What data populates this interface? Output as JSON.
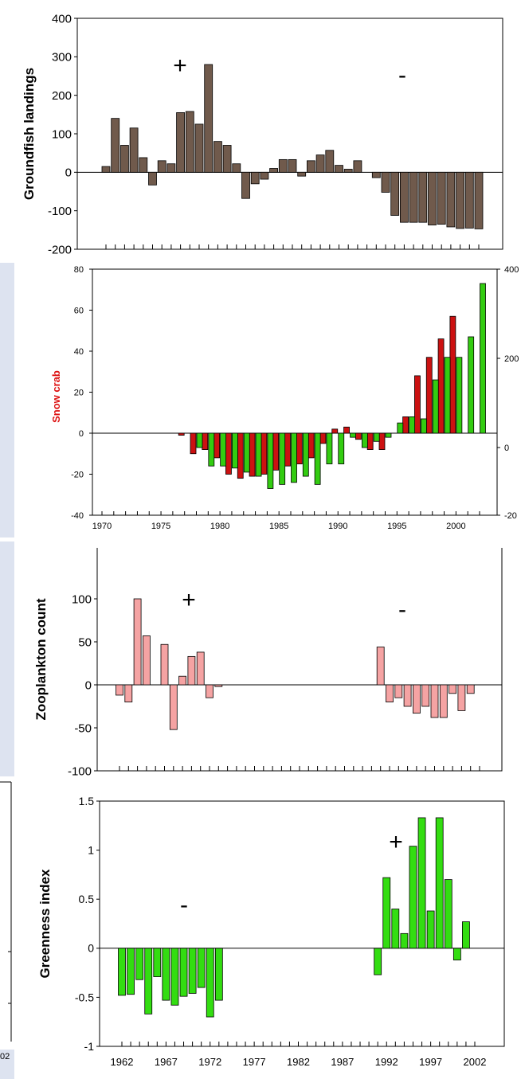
{
  "bg_colors": {
    "panel": "#dde3f0",
    "frame": "#000000"
  },
  "chart_data": [
    {
      "type": "bar",
      "ylabel": "Groundfish landings",
      "ylim": [
        -200,
        400
      ],
      "yticks": [
        "-200",
        "-100",
        "0",
        "100",
        "200",
        "300",
        "400"
      ],
      "bar_color": "#705a4c",
      "annotations": [
        "+",
        "-"
      ],
      "x": [
        1962,
        1963,
        1964,
        1965,
        1966,
        1967,
        1968,
        1969,
        1970,
        1971,
        1972,
        1973,
        1974,
        1975,
        1976,
        1977,
        1978,
        1979,
        1980,
        1981,
        1982,
        1983,
        1984,
        1985,
        1986,
        1987,
        1988,
        1989,
        1990,
        1991,
        1992,
        1993,
        1994,
        1995,
        1996,
        1997,
        1998,
        1999,
        2000,
        2001,
        2002
      ],
      "values": [
        15,
        140,
        70,
        115,
        38,
        -33,
        30,
        22,
        155,
        158,
        125,
        280,
        80,
        70,
        22,
        -68,
        -30,
        -18,
        10,
        33,
        33,
        -10,
        30,
        45,
        57,
        18,
        8,
        30,
        0,
        -14,
        -52,
        -112,
        -130,
        -130,
        -130,
        -137,
        -135,
        -142,
        -146,
        -145,
        -147
      ]
    },
    {
      "type": "bar",
      "ylabel": "Snow crab",
      "ylim": [
        -40,
        80
      ],
      "yticks": [
        "-40",
        "-20",
        "0",
        "20",
        "40",
        "60",
        "80"
      ],
      "right_yticks": [
        "-20",
        "0",
        "200",
        "400"
      ],
      "xtick_labels": [
        "1970",
        "1975",
        "1980",
        "1985",
        "1990",
        "1995",
        "2000"
      ],
      "series": [
        {
          "color": "#cc1111",
          "x": [
            1977,
            1978,
            1979,
            1980,
            1981,
            1982,
            1983,
            1984,
            1985,
            1986,
            1987,
            1988,
            1989,
            1990,
            1991,
            1992,
            1993,
            1994,
            1995,
            1996,
            1997,
            1998,
            1999,
            2000,
            2001
          ],
          "values": [
            -1,
            -10,
            -8,
            -12,
            -20,
            -22,
            -21,
            -20,
            -18,
            -16,
            -15,
            -12,
            -5,
            2,
            3,
            -3,
            -8,
            -8,
            0,
            8,
            28,
            37,
            46,
            57,
            0
          ]
        },
        {
          "color": "#33cc11",
          "x": [
            1978,
            1979,
            1980,
            1981,
            1982,
            1983,
            1984,
            1985,
            1986,
            1987,
            1988,
            1989,
            1990,
            1991,
            1992,
            1993,
            1994,
            1995,
            1996,
            1997,
            1998,
            1999,
            2000,
            2001,
            2002
          ],
          "values": [
            -7,
            -16,
            -16,
            -17,
            -19,
            -21,
            -27,
            -25,
            -24,
            -21,
            -25,
            -15,
            -15,
            -2,
            -7,
            -4,
            -2,
            5,
            8,
            7,
            26,
            37,
            37,
            47,
            73
          ]
        }
      ]
    },
    {
      "type": "bar",
      "ylabel": "Zooplankton count",
      "ylim": [
        -100,
        100
      ],
      "yticks": [
        "-100",
        "-50",
        "0",
        "50",
        "100"
      ],
      "bar_color": "#f5a3a3",
      "annotations": [
        "+",
        "-"
      ],
      "x": [
        1962,
        1963,
        1964,
        1965,
        1966,
        1967,
        1968,
        1969,
        1970,
        1971,
        1972,
        1973,
        1974,
        1975,
        1976,
        1977,
        1978,
        1979,
        1980,
        1981,
        1982,
        1983,
        1984,
        1985,
        1986,
        1987,
        1988,
        1989,
        1990,
        1991,
        1992,
        1993,
        1994,
        1995,
        1996,
        1997,
        1998,
        1999,
        2000,
        2001,
        2002
      ],
      "values": [
        -12,
        -20,
        100,
        57,
        0,
        47,
        -52,
        10,
        33,
        38,
        -15,
        -2,
        0,
        0,
        0,
        0,
        0,
        0,
        0,
        0,
        0,
        0,
        0,
        0,
        0,
        0,
        0,
        0,
        0,
        44,
        -20,
        -15,
        -25,
        -33,
        -25,
        -38,
        -38,
        -10,
        -30,
        -10,
        0
      ]
    },
    {
      "type": "bar",
      "ylabel": "Greenness index",
      "ylim": [
        -1,
        1.5
      ],
      "yticks": [
        "-1",
        "-0.5",
        "0",
        "0.5",
        "1",
        "1.5"
      ],
      "xtick_labels": [
        "1962",
        "1967",
        "1972",
        "1977",
        "1982",
        "1987",
        "1992",
        "1997",
        "2002"
      ],
      "bar_color": "#33dd11",
      "annotations": [
        "-",
        "+"
      ],
      "x": [
        1962,
        1963,
        1964,
        1965,
        1966,
        1967,
        1968,
        1969,
        1970,
        1971,
        1972,
        1973,
        1974,
        1975,
        1976,
        1977,
        1978,
        1979,
        1980,
        1981,
        1982,
        1983,
        1984,
        1985,
        1986,
        1987,
        1988,
        1989,
        1990,
        1991,
        1992,
        1993,
        1994,
        1995,
        1996,
        1997,
        1998,
        1999,
        2000,
        2001,
        2002
      ],
      "values": [
        -0.48,
        -0.47,
        -0.32,
        -0.67,
        -0.29,
        -0.53,
        -0.58,
        -0.49,
        -0.46,
        -0.4,
        -0.7,
        -0.53,
        0,
        0,
        0,
        0,
        0,
        0,
        0,
        0,
        0,
        0,
        0,
        0,
        0,
        0,
        0,
        0,
        0,
        -0.27,
        0.72,
        0.4,
        0.15,
        1.04,
        1.33,
        0.38,
        1.33,
        0.7,
        -0.12,
        0.27,
        0
      ]
    }
  ],
  "fragments": {
    "left_top_tick": "-20",
    "left_bottom_tick": "02"
  }
}
